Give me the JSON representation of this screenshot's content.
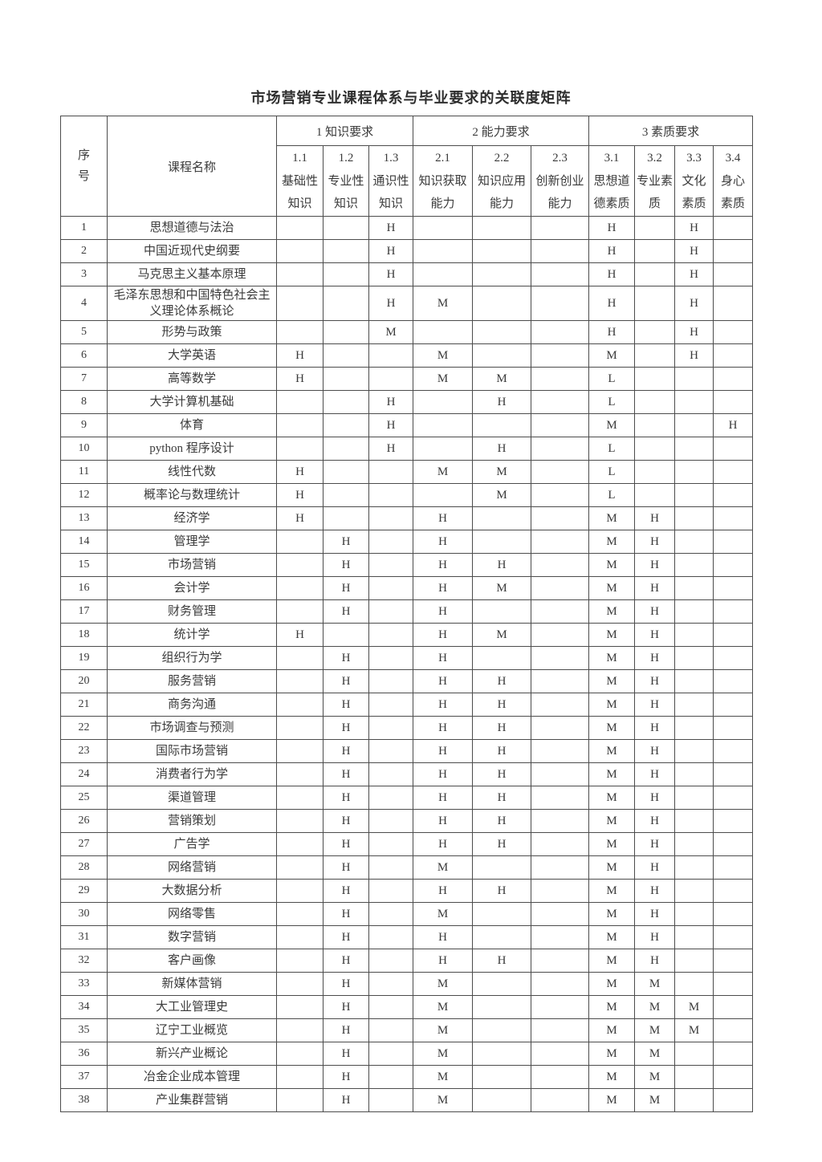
{
  "page": {
    "title": "市场营销专业课程体系与毕业要求的关联度矩阵"
  },
  "table": {
    "corner_header": "序号",
    "course_header": "课程名称",
    "legend_values": [
      "H",
      "M",
      "L"
    ],
    "groups": [
      {
        "label": "1 知识要求",
        "cols": [
          {
            "num": "1.1",
            "name": "基础性知识"
          },
          {
            "num": "1.2",
            "name": "专业性知识"
          },
          {
            "num": "1.3",
            "name": "通识性知识"
          }
        ]
      },
      {
        "label": "2 能力要求",
        "cols": [
          {
            "num": "2.1",
            "name": "知识获取能力"
          },
          {
            "num": "2.2",
            "name": "知识应用能力"
          },
          {
            "num": "2.3",
            "name": "创新创业能力"
          }
        ]
      },
      {
        "label": "3 素质要求",
        "cols": [
          {
            "num": "3.1",
            "name": "思想道德素质"
          },
          {
            "num": "3.2",
            "name": "专业素质"
          },
          {
            "num": "3.3",
            "name": "文化素质"
          },
          {
            "num": "3.4",
            "name": "身心素质"
          }
        ]
      }
    ],
    "rows": [
      {
        "no": "1",
        "course": "思想道德与法治",
        "values": [
          "",
          "",
          "H",
          "",
          "",
          "",
          "H",
          "",
          "H",
          ""
        ]
      },
      {
        "no": "2",
        "course": "中国近现代史纲要",
        "values": [
          "",
          "",
          "H",
          "",
          "",
          "",
          "H",
          "",
          "H",
          ""
        ]
      },
      {
        "no": "3",
        "course": "马克思主义基本原理",
        "values": [
          "",
          "",
          "H",
          "",
          "",
          "",
          "H",
          "",
          "H",
          ""
        ]
      },
      {
        "no": "4",
        "course": "毛泽东思想和中国特色社会主义理论体系概论",
        "values": [
          "",
          "",
          "H",
          "M",
          "",
          "",
          "H",
          "",
          "H",
          ""
        ]
      },
      {
        "no": "5",
        "course": "形势与政策",
        "values": [
          "",
          "",
          "M",
          "",
          "",
          "",
          "H",
          "",
          "H",
          ""
        ]
      },
      {
        "no": "6",
        "course": "大学英语",
        "values": [
          "H",
          "",
          "",
          "M",
          "",
          "",
          "M",
          "",
          "H",
          ""
        ]
      },
      {
        "no": "7",
        "course": "高等数学",
        "values": [
          "H",
          "",
          "",
          "M",
          "M",
          "",
          "L",
          "",
          "",
          ""
        ]
      },
      {
        "no": "8",
        "course": "大学计算机基础",
        "values": [
          "",
          "",
          "H",
          "",
          "H",
          "",
          "L",
          "",
          "",
          ""
        ]
      },
      {
        "no": "9",
        "course": "体育",
        "values": [
          "",
          "",
          "H",
          "",
          "",
          "",
          "M",
          "",
          "",
          "H"
        ]
      },
      {
        "no": "10",
        "course": "python 程序设计",
        "values": [
          "",
          "",
          "H",
          "",
          "H",
          "",
          "L",
          "",
          "",
          ""
        ]
      },
      {
        "no": "11",
        "course": "线性代数",
        "values": [
          "H",
          "",
          "",
          "M",
          "M",
          "",
          "L",
          "",
          "",
          ""
        ]
      },
      {
        "no": "12",
        "course": "概率论与数理统计",
        "values": [
          "H",
          "",
          "",
          "",
          "M",
          "",
          "L",
          "",
          "",
          ""
        ]
      },
      {
        "no": "13",
        "course": "经济学",
        "values": [
          "H",
          "",
          "",
          "H",
          "",
          "",
          "M",
          "H",
          "",
          ""
        ]
      },
      {
        "no": "14",
        "course": "管理学",
        "values": [
          "",
          "H",
          "",
          "H",
          "",
          "",
          "M",
          "H",
          "",
          ""
        ]
      },
      {
        "no": "15",
        "course": "市场营销",
        "values": [
          "",
          "H",
          "",
          "H",
          "H",
          "",
          "M",
          "H",
          "",
          ""
        ]
      },
      {
        "no": "16",
        "course": "会计学",
        "values": [
          "",
          "H",
          "",
          "H",
          "M",
          "",
          "M",
          "H",
          "",
          ""
        ]
      },
      {
        "no": "17",
        "course": "财务管理",
        "values": [
          "",
          "H",
          "",
          "H",
          "",
          "",
          "M",
          "H",
          "",
          ""
        ]
      },
      {
        "no": "18",
        "course": "统计学",
        "values": [
          "H",
          "",
          "",
          "H",
          "M",
          "",
          "M",
          "H",
          "",
          ""
        ]
      },
      {
        "no": "19",
        "course": "组织行为学",
        "values": [
          "",
          "H",
          "",
          "H",
          "",
          "",
          "M",
          "H",
          "",
          ""
        ]
      },
      {
        "no": "20",
        "course": "服务营销",
        "values": [
          "",
          "H",
          "",
          "H",
          "H",
          "",
          "M",
          "H",
          "",
          ""
        ]
      },
      {
        "no": "21",
        "course": "商务沟通",
        "values": [
          "",
          "H",
          "",
          "H",
          "H",
          "",
          "M",
          "H",
          "",
          ""
        ]
      },
      {
        "no": "22",
        "course": "市场调查与预测",
        "values": [
          "",
          "H",
          "",
          "H",
          "H",
          "",
          "M",
          "H",
          "",
          ""
        ]
      },
      {
        "no": "23",
        "course": "国际市场营销",
        "values": [
          "",
          "H",
          "",
          "H",
          "H",
          "",
          "M",
          "H",
          "",
          ""
        ]
      },
      {
        "no": "24",
        "course": "消费者行为学",
        "values": [
          "",
          "H",
          "",
          "H",
          "H",
          "",
          "M",
          "H",
          "",
          ""
        ]
      },
      {
        "no": "25",
        "course": "渠道管理",
        "values": [
          "",
          "H",
          "",
          "H",
          "H",
          "",
          "M",
          "H",
          "",
          ""
        ]
      },
      {
        "no": "26",
        "course": "营销策划",
        "values": [
          "",
          "H",
          "",
          "H",
          "H",
          "",
          "M",
          "H",
          "",
          ""
        ]
      },
      {
        "no": "27",
        "course": "广告学",
        "values": [
          "",
          "H",
          "",
          "H",
          "H",
          "",
          "M",
          "H",
          "",
          ""
        ]
      },
      {
        "no": "28",
        "course": "网络营销",
        "values": [
          "",
          "H",
          "",
          "M",
          "",
          "",
          "M",
          "H",
          "",
          ""
        ]
      },
      {
        "no": "29",
        "course": "大数据分析",
        "values": [
          "",
          "H",
          "",
          "H",
          "H",
          "",
          "M",
          "H",
          "",
          ""
        ]
      },
      {
        "no": "30",
        "course": "网络零售",
        "values": [
          "",
          "H",
          "",
          "M",
          "",
          "",
          "M",
          "H",
          "",
          ""
        ]
      },
      {
        "no": "31",
        "course": "数字营销",
        "values": [
          "",
          "H",
          "",
          "H",
          "",
          "",
          "M",
          "H",
          "",
          ""
        ]
      },
      {
        "no": "32",
        "course": "客户画像",
        "values": [
          "",
          "H",
          "",
          "H",
          "H",
          "",
          "M",
          "H",
          "",
          ""
        ]
      },
      {
        "no": "33",
        "course": "新媒体营销",
        "values": [
          "",
          "H",
          "",
          "M",
          "",
          "",
          "M",
          "M",
          "",
          ""
        ]
      },
      {
        "no": "34",
        "course": "大工业管理史",
        "values": [
          "",
          "H",
          "",
          "M",
          "",
          "",
          "M",
          "M",
          "M",
          ""
        ]
      },
      {
        "no": "35",
        "course": "辽宁工业概览",
        "values": [
          "",
          "H",
          "",
          "M",
          "",
          "",
          "M",
          "M",
          "M",
          ""
        ]
      },
      {
        "no": "36",
        "course": "新兴产业概论",
        "values": [
          "",
          "H",
          "",
          "M",
          "",
          "",
          "M",
          "M",
          "",
          ""
        ]
      },
      {
        "no": "37",
        "course": "冶金企业成本管理",
        "values": [
          "",
          "H",
          "",
          "M",
          "",
          "",
          "M",
          "M",
          "",
          ""
        ]
      },
      {
        "no": "38",
        "course": "产业集群营销",
        "values": [
          "",
          "H",
          "",
          "M",
          "",
          "",
          "M",
          "M",
          "",
          ""
        ]
      }
    ]
  }
}
